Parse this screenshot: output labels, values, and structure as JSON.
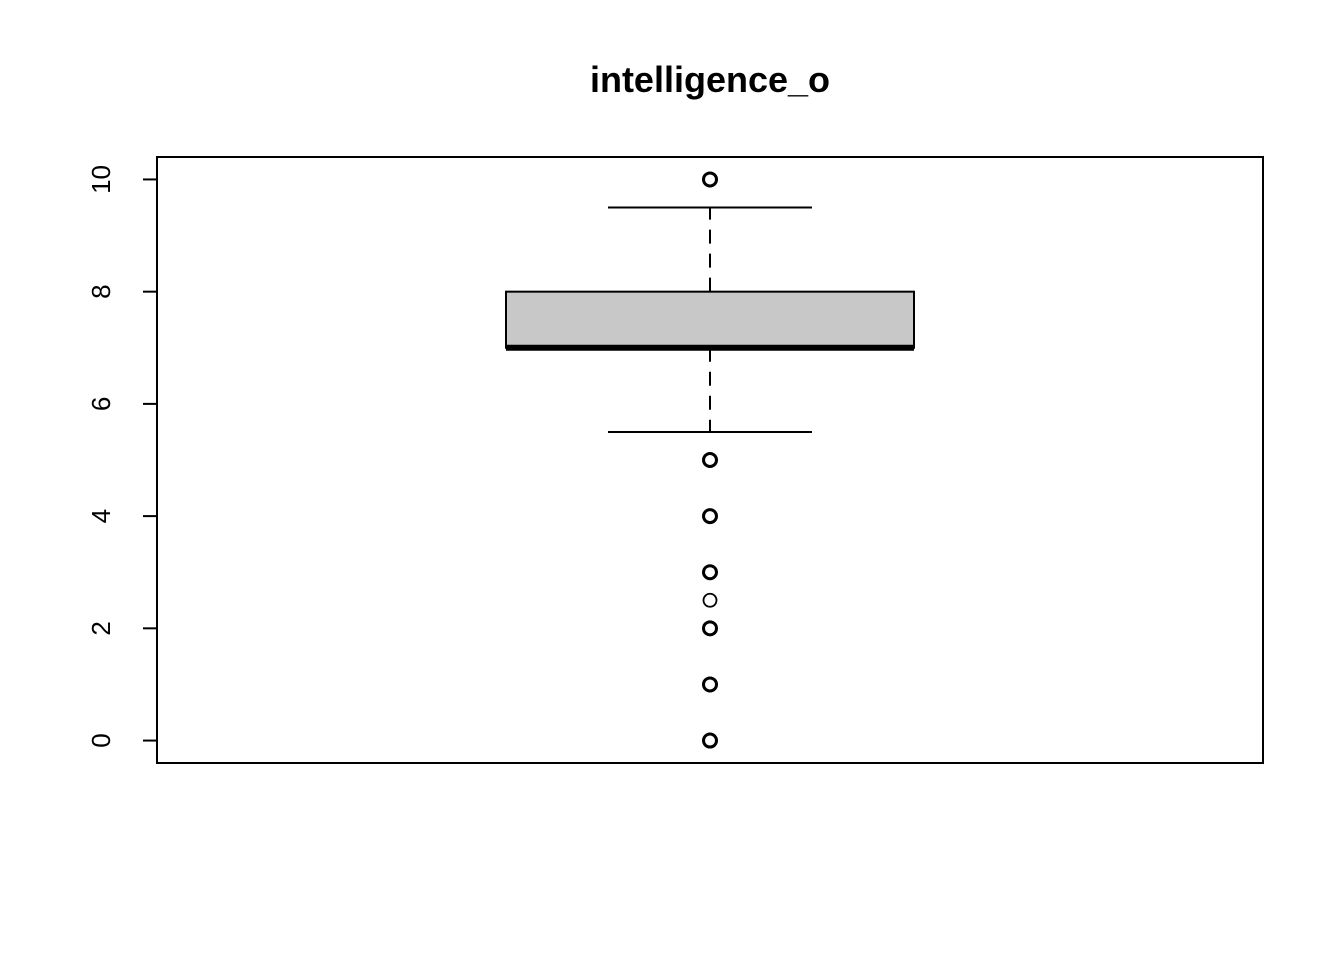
{
  "chart_data": {
    "type": "boxplot",
    "title": "intelligence_o",
    "xlabel": "",
    "ylabel": "",
    "ylim": [
      -0.4,
      10.4
    ],
    "yticks": [
      0,
      2,
      4,
      6,
      8,
      10
    ],
    "ytick_labels": [
      "0",
      "2",
      "4",
      "6",
      "8",
      "10"
    ],
    "grid": false,
    "legend": "none",
    "box": {
      "lower_whisker": 5.5,
      "q1": 7,
      "median": 7,
      "q3": 8,
      "upper_whisker": 9.5,
      "fill_color": "#c8c8c8"
    },
    "outliers": [
      10,
      5,
      4,
      3,
      2.5,
      2,
      1,
      0
    ],
    "outlier_heavy": [
      10,
      5,
      4,
      3,
      2,
      1,
      0
    ]
  }
}
